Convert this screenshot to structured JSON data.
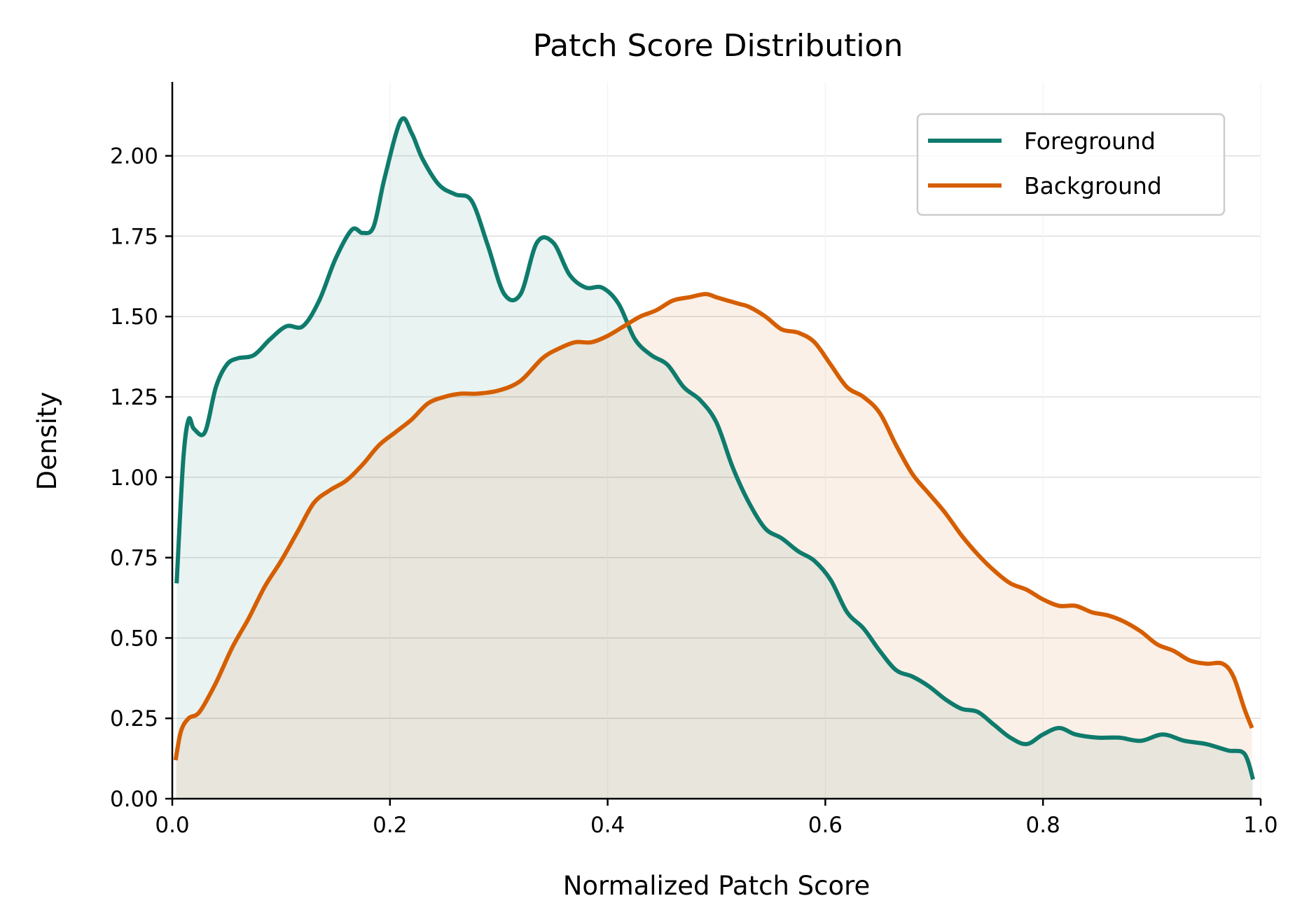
{
  "chart_data": {
    "type": "area",
    "title": "Patch Score Distribution",
    "xlabel": "Normalized Patch Score",
    "ylabel": "Density",
    "xlim": [
      0.0,
      1.0
    ],
    "ylim": [
      0.0,
      2.23
    ],
    "xticks": [
      0.0,
      0.2,
      0.4,
      0.6,
      0.8,
      1.0
    ],
    "xtick_labels": [
      "0.0",
      "0.2",
      "0.4",
      "0.6",
      "0.8",
      "1.0"
    ],
    "yticks": [
      0.0,
      0.25,
      0.5,
      0.75,
      1.0,
      1.25,
      1.5,
      1.75,
      2.0
    ],
    "ytick_labels": [
      "0.00",
      "0.25",
      "0.50",
      "0.75",
      "1.00",
      "1.25",
      "1.50",
      "1.75",
      "2.00"
    ],
    "grid": "horizontal, light",
    "legend": "top-right",
    "series": [
      {
        "name": "Foreground",
        "color": "#0f7b6c",
        "x": [
          0.004,
          0.01,
          0.015,
          0.02,
          0.03,
          0.04,
          0.05,
          0.06,
          0.075,
          0.09,
          0.105,
          0.12,
          0.135,
          0.15,
          0.165,
          0.175,
          0.185,
          0.195,
          0.21,
          0.22,
          0.23,
          0.245,
          0.26,
          0.275,
          0.29,
          0.305,
          0.32,
          0.335,
          0.35,
          0.365,
          0.38,
          0.395,
          0.41,
          0.425,
          0.44,
          0.455,
          0.47,
          0.485,
          0.5,
          0.515,
          0.53,
          0.545,
          0.56,
          0.575,
          0.59,
          0.605,
          0.62,
          0.635,
          0.65,
          0.665,
          0.68,
          0.695,
          0.71,
          0.725,
          0.74,
          0.755,
          0.77,
          0.785,
          0.8,
          0.815,
          0.83,
          0.85,
          0.87,
          0.89,
          0.91,
          0.93,
          0.95,
          0.97,
          0.985,
          0.993
        ],
        "values": [
          0.67,
          1.05,
          1.18,
          1.15,
          1.14,
          1.28,
          1.35,
          1.37,
          1.38,
          1.43,
          1.47,
          1.47,
          1.55,
          1.68,
          1.77,
          1.76,
          1.78,
          1.93,
          2.11,
          2.07,
          1.99,
          1.91,
          1.88,
          1.86,
          1.72,
          1.57,
          1.57,
          1.73,
          1.73,
          1.63,
          1.59,
          1.59,
          1.54,
          1.43,
          1.38,
          1.35,
          1.28,
          1.24,
          1.17,
          1.03,
          0.92,
          0.84,
          0.81,
          0.77,
          0.74,
          0.68,
          0.58,
          0.53,
          0.46,
          0.4,
          0.38,
          0.35,
          0.31,
          0.28,
          0.27,
          0.23,
          0.19,
          0.17,
          0.2,
          0.22,
          0.2,
          0.19,
          0.19,
          0.18,
          0.2,
          0.18,
          0.17,
          0.15,
          0.14,
          0.06
        ]
      },
      {
        "name": "Background",
        "color": "#d55e00",
        "x": [
          0.003,
          0.008,
          0.015,
          0.025,
          0.04,
          0.055,
          0.07,
          0.085,
          0.1,
          0.115,
          0.13,
          0.145,
          0.16,
          0.175,
          0.19,
          0.205,
          0.22,
          0.235,
          0.25,
          0.265,
          0.28,
          0.3,
          0.32,
          0.34,
          0.355,
          0.37,
          0.385,
          0.4,
          0.415,
          0.43,
          0.445,
          0.46,
          0.475,
          0.49,
          0.5,
          0.51,
          0.52,
          0.53,
          0.545,
          0.56,
          0.575,
          0.59,
          0.605,
          0.62,
          0.635,
          0.65,
          0.665,
          0.68,
          0.695,
          0.71,
          0.725,
          0.74,
          0.755,
          0.77,
          0.785,
          0.8,
          0.815,
          0.83,
          0.845,
          0.86,
          0.875,
          0.89,
          0.905,
          0.92,
          0.935,
          0.95,
          0.965,
          0.975,
          0.985,
          0.992
        ],
        "values": [
          0.12,
          0.21,
          0.25,
          0.27,
          0.36,
          0.47,
          0.56,
          0.66,
          0.74,
          0.83,
          0.92,
          0.96,
          0.99,
          1.04,
          1.1,
          1.14,
          1.18,
          1.23,
          1.25,
          1.26,
          1.26,
          1.27,
          1.3,
          1.37,
          1.4,
          1.42,
          1.42,
          1.44,
          1.47,
          1.5,
          1.52,
          1.55,
          1.56,
          1.57,
          1.56,
          1.55,
          1.54,
          1.53,
          1.5,
          1.46,
          1.45,
          1.42,
          1.35,
          1.28,
          1.25,
          1.2,
          1.1,
          1.01,
          0.95,
          0.89,
          0.82,
          0.76,
          0.71,
          0.67,
          0.65,
          0.62,
          0.6,
          0.6,
          0.58,
          0.57,
          0.55,
          0.52,
          0.48,
          0.46,
          0.43,
          0.42,
          0.42,
          0.38,
          0.28,
          0.22
        ]
      }
    ]
  }
}
